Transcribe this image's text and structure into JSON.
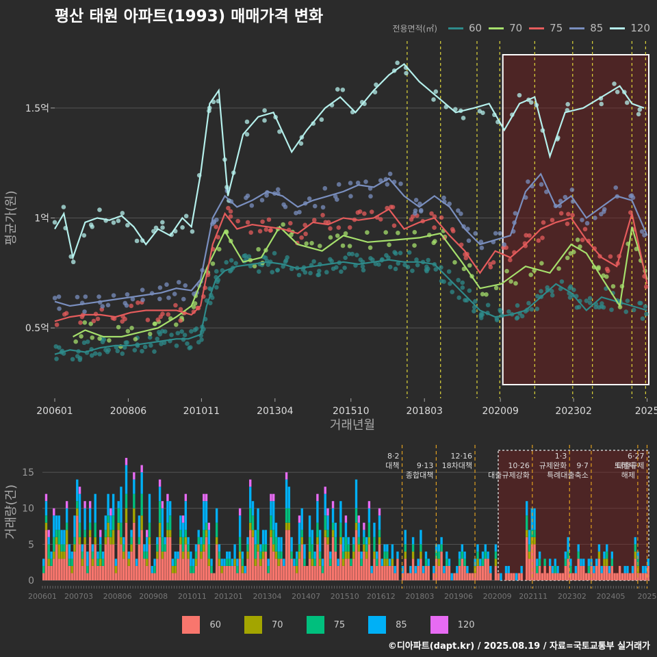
{
  "title": "평산 태원 아파트(1993) 매매가격 변화",
  "credit": "©디아파트(dapt.kr) / 2025.08.19 / 자료=국토교통부 실거래가",
  "legend_top": {
    "title": "전용면적(㎡)",
    "items": [
      {
        "label": "60",
        "color": "#2e8b8b"
      },
      {
        "label": "70",
        "color": "#a6e06c"
      },
      {
        "label": "75",
        "color": "#e65c5c"
      },
      {
        "label": "85",
        "color": "#7a8fbf"
      },
      {
        "label": "120",
        "color": "#b5f0ec"
      }
    ]
  },
  "legend_bottom": {
    "items": [
      {
        "label": "60",
        "color": "#f8766d"
      },
      {
        "label": "70",
        "color": "#a3a500"
      },
      {
        "label": "75",
        "color": "#00bf7d"
      },
      {
        "label": "85",
        "color": "#00b0f6"
      },
      {
        "label": "120",
        "color": "#e76bf3"
      }
    ]
  },
  "chart_data": [
    {
      "type": "line",
      "title": "평산 태원 아파트(1993) 매매가격 변화",
      "xlabel": "거래년월",
      "ylabel": "평균가(원)",
      "x_ticks": [
        "200601",
        "200806",
        "201011",
        "201304",
        "201510",
        "201803",
        "202009",
        "202302",
        "2025"
      ],
      "y_ticks": [
        {
          "value": 0.5,
          "label": "0.5억"
        },
        {
          "value": 1.0,
          "label": "1억"
        },
        {
          "value": 1.5,
          "label": "1.5억"
        }
      ],
      "x_range": [
        2006.0,
        2025.6
      ],
      "y_range": [
        0.18,
        1.82
      ],
      "highlight_range": [
        2020.75,
        2025.6
      ],
      "policy_lines": [
        2017.6,
        2018.7,
        2019.9,
        2020.65,
        2021.8,
        2023.05,
        2023.7,
        2025.0,
        2025.45
      ],
      "series": [
        {
          "name": "60",
          "x": [
            2006.0,
            2006.5,
            2007.0,
            2007.5,
            2008.0,
            2008.5,
            2009.0,
            2009.5,
            2010.0,
            2010.4,
            2010.8,
            2011.0,
            2011.3,
            2011.6,
            2012.0,
            2012.5,
            2013.0,
            2013.5,
            2014.0,
            2014.5,
            2015.0,
            2015.5,
            2016.0,
            2016.5,
            2017.0,
            2017.5,
            2018.0,
            2018.5,
            2019.0,
            2019.5,
            2020.0,
            2020.5,
            2021.0,
            2021.5,
            2022.0,
            2022.5,
            2023.0,
            2023.5,
            2024.0,
            2024.5,
            2025.0,
            2025.5
          ],
          "y": [
            0.38,
            0.4,
            0.39,
            0.41,
            0.42,
            0.42,
            0.43,
            0.44,
            0.45,
            0.45,
            0.47,
            0.6,
            0.72,
            0.76,
            0.78,
            0.79,
            0.8,
            0.79,
            0.77,
            0.78,
            0.79,
            0.8,
            0.79,
            0.8,
            0.81,
            0.8,
            0.8,
            0.79,
            0.72,
            0.65,
            0.58,
            0.55,
            0.56,
            0.58,
            0.64,
            0.7,
            0.66,
            0.58,
            0.64,
            0.62,
            0.6,
            0.58
          ]
        },
        {
          "name": "70",
          "x": [
            2006.6,
            2007.0,
            2007.6,
            2008.2,
            2008.8,
            2009.4,
            2010.0,
            2010.5,
            2011.0,
            2011.6,
            2012.2,
            2012.8,
            2013.4,
            2014.0,
            2014.8,
            2015.5,
            2016.3,
            2017.2,
            2018.0,
            2018.7,
            2019.4,
            2020.0,
            2020.7,
            2021.5,
            2022.3,
            2023.0,
            2023.5,
            2024.0,
            2024.6,
            2025.0,
            2025.5
          ],
          "y": [
            0.46,
            0.49,
            0.46,
            0.46,
            0.48,
            0.5,
            0.55,
            0.6,
            0.77,
            0.94,
            0.8,
            0.82,
            0.96,
            0.88,
            0.85,
            0.92,
            0.89,
            0.9,
            0.91,
            0.93,
            0.8,
            0.68,
            0.7,
            0.78,
            0.75,
            0.88,
            0.84,
            0.73,
            0.6,
            0.96,
            0.72
          ]
        },
        {
          "name": "75",
          "x": [
            2006.0,
            2006.5,
            2007.0,
            2007.5,
            2008.0,
            2008.5,
            2009.0,
            2009.5,
            2010.0,
            2010.5,
            2010.8,
            2011.2,
            2011.6,
            2012.0,
            2012.5,
            2013.0,
            2013.5,
            2014.0,
            2014.5,
            2015.0,
            2015.5,
            2016.0,
            2016.5,
            2017.0,
            2017.5,
            2018.0,
            2018.5,
            2019.0,
            2019.5,
            2020.0,
            2020.5,
            2021.0,
            2021.5,
            2022.0,
            2022.5,
            2023.0,
            2023.5,
            2024.0,
            2024.5,
            2025.0,
            2025.5
          ],
          "y": [
            0.53,
            0.55,
            0.56,
            0.56,
            0.55,
            0.57,
            0.58,
            0.58,
            0.58,
            0.56,
            0.6,
            0.88,
            1.02,
            0.95,
            0.97,
            0.96,
            0.95,
            0.93,
            0.98,
            0.97,
            1.0,
            0.99,
            1.0,
            1.04,
            0.95,
            0.98,
            1.0,
            0.92,
            0.85,
            0.75,
            0.85,
            0.82,
            0.88,
            0.95,
            0.98,
            1.0,
            0.9,
            0.82,
            0.78,
            1.02,
            0.7
          ]
        },
        {
          "name": "85",
          "x": [
            2006.0,
            2006.5,
            2007.0,
            2007.5,
            2008.0,
            2008.5,
            2009.0,
            2009.5,
            2010.0,
            2010.5,
            2010.8,
            2011.2,
            2011.6,
            2012.0,
            2012.5,
            2013.0,
            2013.5,
            2014.0,
            2014.5,
            2015.0,
            2015.5,
            2016.0,
            2016.5,
            2017.0,
            2017.5,
            2018.0,
            2018.5,
            2019.0,
            2019.5,
            2020.0,
            2020.5,
            2021.0,
            2021.5,
            2022.0,
            2022.5,
            2023.0,
            2023.5,
            2024.0,
            2024.5,
            2025.0,
            2025.5
          ],
          "y": [
            0.62,
            0.6,
            0.61,
            0.62,
            0.63,
            0.64,
            0.65,
            0.66,
            0.68,
            0.67,
            0.72,
            1.0,
            1.1,
            1.05,
            1.08,
            1.12,
            1.1,
            1.05,
            1.08,
            1.1,
            1.12,
            1.15,
            1.14,
            1.18,
            1.1,
            1.05,
            1.1,
            1.05,
            0.95,
            0.88,
            0.9,
            0.92,
            1.12,
            1.2,
            1.05,
            1.1,
            1.0,
            1.05,
            1.1,
            1.08,
            0.92
          ]
        },
        {
          "name": "120",
          "x": [
            2006.0,
            2006.3,
            2006.6,
            2007.0,
            2007.4,
            2007.8,
            2008.2,
            2008.6,
            2009.0,
            2009.4,
            2009.8,
            2010.2,
            2010.5,
            2010.8,
            2011.1,
            2011.4,
            2011.7,
            2012.2,
            2012.7,
            2013.2,
            2013.8,
            2014.3,
            2014.9,
            2015.4,
            2015.9,
            2016.5,
            2017.0,
            2017.5,
            2018.0,
            2018.6,
            2019.2,
            2019.8,
            2020.3,
            2020.8,
            2021.3,
            2021.8,
            2022.3,
            2022.8,
            2023.4,
            2024.0,
            2024.6,
            2025.0,
            2025.4
          ],
          "y": [
            0.95,
            1.02,
            0.82,
            0.98,
            1.0,
            0.99,
            1.01,
            0.96,
            0.88,
            0.95,
            0.92,
            1.0,
            0.96,
            1.2,
            1.52,
            1.58,
            1.1,
            1.38,
            1.46,
            1.48,
            1.3,
            1.4,
            1.5,
            1.55,
            1.48,
            1.58,
            1.65,
            1.7,
            1.62,
            1.55,
            1.48,
            1.5,
            1.52,
            1.4,
            1.52,
            1.55,
            1.28,
            1.48,
            1.5,
            1.55,
            1.6,
            1.52,
            1.5
          ]
        }
      ]
    },
    {
      "type": "bar",
      "stacked": true,
      "ylabel": "거래량(건)",
      "x_ticks": [
        "200601",
        "200703",
        "200806",
        "200908",
        "201011",
        "201201",
        "201304",
        "201407",
        "201510",
        "201612",
        "201803",
        "201906",
        "202009",
        "202111",
        "202302",
        "202405",
        "2025"
      ],
      "y_ticks": [
        0,
        5,
        10,
        15
      ],
      "y_range": [
        0,
        19
      ],
      "highlight_range": [
        2020.7,
        2025.6
      ],
      "series_names": [
        "60",
        "70",
        "75",
        "85",
        "120"
      ],
      "policy_annotations": [
        {
          "label": "8·2 대책",
          "x": 2017.6
        },
        {
          "label": "9·13 종합대책",
          "x": 2018.7
        },
        {
          "label": "12·16 18차대책",
          "x": 2019.95
        },
        {
          "label": "10·26 대출규제강화",
          "x": 2021.8
        },
        {
          "label": "1·3 규제완화",
          "x": 2023.0
        },
        {
          "label": "9·7 특례대출축소",
          "x": 2023.7
        },
        {
          "label": "6·27 대출규제",
          "x": 2025.5
        },
        {
          "label": "토허제 해제",
          "x": 2025.2
        }
      ]
    }
  ]
}
